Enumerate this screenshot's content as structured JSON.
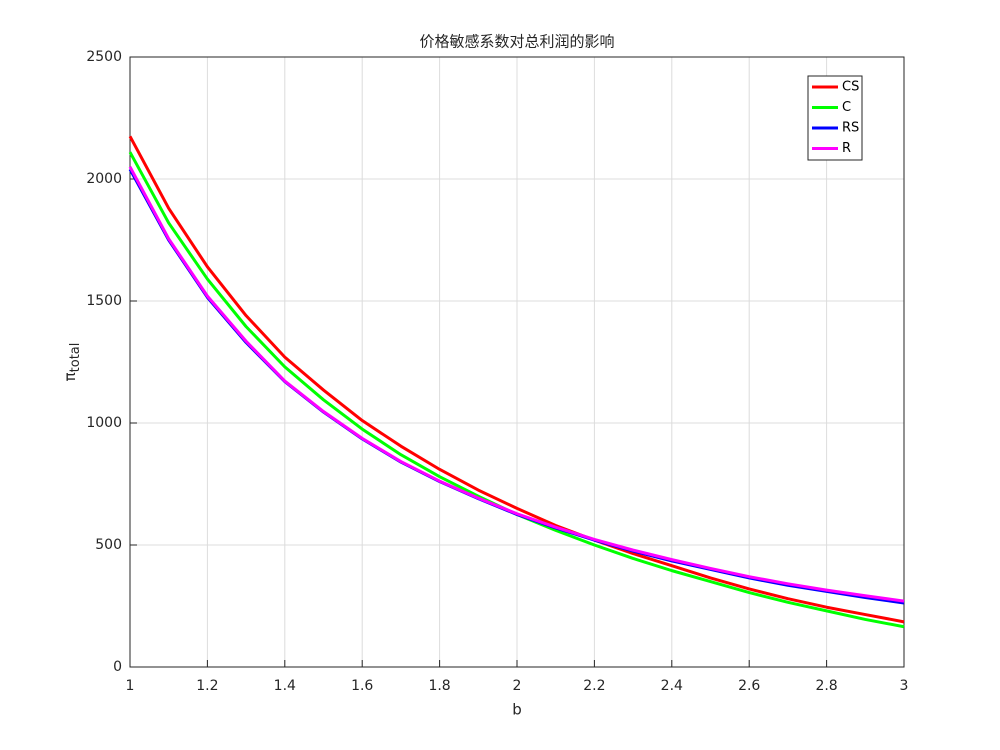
{
  "chart_data": {
    "type": "line",
    "title": "价格敏感系数对总利润的影响",
    "xlabel": "b",
    "ylabel": {
      "symbol": "π",
      "subscript": "total"
    },
    "x": [
      1,
      1.1,
      1.2,
      1.3,
      1.4,
      1.5,
      1.6,
      1.7,
      1.8,
      1.9,
      2,
      2.1,
      2.2,
      2.3,
      2.4,
      2.5,
      2.6,
      2.7,
      2.8,
      2.9,
      3
    ],
    "series": [
      {
        "name": "CS",
        "color": "#ff0000",
        "values": [
          2175,
          1880,
          1640,
          1440,
          1270,
          1135,
          1010,
          905,
          810,
          725,
          650,
          580,
          520,
          465,
          415,
          365,
          320,
          280,
          245,
          215,
          185
        ]
      },
      {
        "name": "C",
        "color": "#00ff00",
        "values": [
          2110,
          1820,
          1590,
          1395,
          1230,
          1095,
          975,
          870,
          780,
          700,
          625,
          560,
          500,
          445,
          395,
          350,
          305,
          265,
          230,
          195,
          165
        ]
      },
      {
        "name": "RS",
        "color": "#0000ff",
        "values": [
          2040,
          1750,
          1515,
          1330,
          1170,
          1045,
          935,
          840,
          760,
          690,
          625,
          570,
          520,
          475,
          435,
          400,
          365,
          335,
          310,
          285,
          262
        ]
      },
      {
        "name": "R",
        "color": "#ff00ff",
        "values": [
          2050,
          1755,
          1520,
          1335,
          1172,
          1047,
          937,
          842,
          762,
          692,
          628,
          573,
          523,
          479,
          440,
          404,
          370,
          341,
          315,
          292,
          270
        ]
      }
    ],
    "xlim": [
      1,
      3
    ],
    "xticks": [
      1,
      1.2,
      1.4,
      1.6,
      1.8,
      2,
      2.2,
      2.4,
      2.6,
      2.8,
      3
    ],
    "ylim": [
      0,
      2500
    ],
    "yticks": [
      0,
      500,
      1000,
      1500,
      2000,
      2500
    ],
    "grid": true,
    "legend": "northeast"
  }
}
